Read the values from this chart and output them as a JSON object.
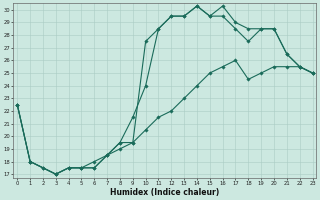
{
  "xlabel": "Humidex (Indice chaleur)",
  "bg_color": "#cce8e0",
  "grid_color": "#aaccc4",
  "line_color": "#1a6b5a",
  "xticks": [
    0,
    1,
    2,
    3,
    4,
    5,
    6,
    7,
    8,
    9,
    10,
    11,
    12,
    13,
    14,
    15,
    16,
    17,
    18,
    19,
    20,
    21,
    22,
    23
  ],
  "yticks": [
    17,
    18,
    19,
    20,
    21,
    22,
    23,
    24,
    25,
    26,
    27,
    28,
    29,
    30
  ],
  "xlim": [
    -0.3,
    23.3
  ],
  "ylim": [
    16.7,
    30.5
  ],
  "line1_x": [
    0,
    1,
    2,
    3,
    4,
    5,
    6,
    7,
    8,
    9,
    10,
    11,
    12,
    13,
    14,
    15,
    16,
    17,
    18,
    19,
    20,
    21,
    22,
    23
  ],
  "line1_y": [
    22.5,
    18,
    17.5,
    17,
    17.5,
    17.5,
    17.5,
    18.5,
    19.5,
    19.5,
    27.5,
    28.5,
    29.5,
    29.5,
    30.3,
    29.5,
    30.3,
    29,
    28.5,
    28.5,
    28.5,
    26.5,
    25.5,
    25
  ],
  "line2_x": [
    0,
    1,
    2,
    3,
    4,
    5,
    6,
    7,
    8,
    9,
    10,
    11,
    12,
    13,
    14,
    15,
    16,
    17,
    18,
    19,
    20,
    21,
    22,
    23
  ],
  "line2_y": [
    22.5,
    18,
    17.5,
    17,
    17.5,
    17.5,
    17.5,
    18.5,
    19.5,
    21.5,
    24,
    28.5,
    29.5,
    29.5,
    30.3,
    29.5,
    29.5,
    28.5,
    27.5,
    28.5,
    28.5,
    26.5,
    25.5,
    25
  ],
  "line3_x": [
    0,
    1,
    3,
    4,
    5,
    6,
    7,
    8,
    9,
    10,
    11,
    12,
    13,
    14,
    15,
    16,
    17,
    18,
    19,
    20,
    21,
    22,
    23
  ],
  "line3_y": [
    22.5,
    18,
    17,
    17.5,
    17.5,
    18,
    18.5,
    19,
    19.5,
    20.5,
    21.5,
    22,
    23,
    24,
    25,
    25.5,
    26,
    24.5,
    25,
    25.5,
    25.5,
    25.5,
    25
  ]
}
